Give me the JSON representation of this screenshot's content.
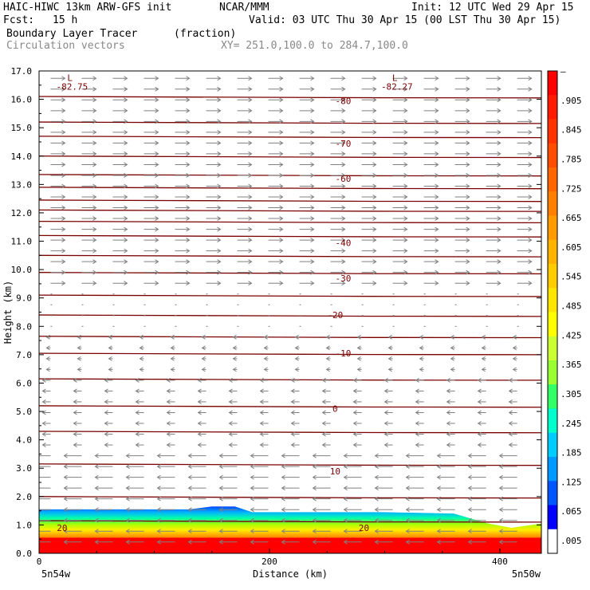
{
  "header": {
    "model": "HAIC-HIWC 13km ARW-GFS init",
    "org": "NCAR/MMM",
    "init": "Init: 12 UTC Wed 29 Apr 15",
    "fcst_label": "Fcst:",
    "fcst_value": "15 h",
    "valid": "Valid: 03 UTC Thu 30 Apr 15 (00 LST Thu 30 Apr 15)",
    "field": "Boundary Layer Tracer",
    "field_units": "(fraction)",
    "overlay": "Circulation vectors",
    "xy": "XY= 251.0,100.0 to 284.7,100.0"
  },
  "chart_data": {
    "type": "heatmap",
    "xlabel": "Distance (km)",
    "ylabel": "Height (km)",
    "xlim": [
      0,
      436
    ],
    "ylim": [
      0,
      17
    ],
    "x_ticks": [
      0,
      200,
      400
    ],
    "y_ticks": [
      "0.0",
      "1.0",
      "2.0",
      "3.0",
      "4.0",
      "5.0",
      "6.0",
      "7.0",
      "8.0",
      "9.0",
      "10.0",
      "11.0",
      "12.0",
      "13.0",
      "14.0",
      "15.0",
      "16.0",
      "17.0"
    ],
    "x_end_labels": [
      "5n54w",
      "5n50w"
    ],
    "colorbar": {
      "labels": [
        "–",
        ".905",
        ".845",
        ".785",
        ".725",
        ".665",
        ".605",
        ".545",
        ".485",
        ".425",
        ".365",
        ".305",
        ".245",
        ".185",
        ".125",
        ".065",
        ".005"
      ],
      "colors": [
        "#ff0000",
        "#ff1a00",
        "#ff3300",
        "#ff4d00",
        "#ff6600",
        "#ff8000",
        "#ff9a00",
        "#ffb300",
        "#ffcc00",
        "#ffe600",
        "#ffff00",
        "#ccff33",
        "#99ff33",
        "#33ff66",
        "#00ffcc",
        "#00ccff",
        "#0099ff",
        "#0055ff",
        "#0000ff",
        "#ffffff"
      ]
    },
    "tracer_top_km": [
      [
        0,
        1.55
      ],
      [
        80,
        1.55
      ],
      [
        130,
        1.55
      ],
      [
        150,
        1.65
      ],
      [
        170,
        1.65
      ],
      [
        185,
        1.45
      ],
      [
        250,
        1.45
      ],
      [
        300,
        1.45
      ],
      [
        360,
        1.4
      ],
      [
        390,
        1.05
      ],
      [
        410,
        0.9
      ],
      [
        436,
        1.05
      ]
    ],
    "isotherms": [
      {
        "label": "-80",
        "x": 264,
        "y": 15.95
      },
      {
        "label": "-70",
        "x": 264,
        "y": 14.45
      },
      {
        "label": "-60",
        "x": 264,
        "y": 13.2
      },
      {
        "label": "-40",
        "x": 264,
        "y": 10.95
      },
      {
        "label": "-30",
        "x": 264,
        "y": 9.7
      },
      {
        "label": "-20",
        "x": 257,
        "y": 8.4
      },
      {
        "label": "-10",
        "x": 264,
        "y": 7.05
      },
      {
        "label": "0",
        "x": 257,
        "y": 5.1
      },
      {
        "label": "10",
        "x": 257,
        "y": 2.9
      },
      {
        "label": "20",
        "x": 20,
        "y": 0.9
      },
      {
        "label": "20",
        "x": 282,
        "y": 0.9
      }
    ],
    "isotherm_lines_km": [
      16.1,
      15.2,
      14.7,
      14.0,
      13.35,
      12.9,
      12.45,
      12.1,
      11.7,
      11.2,
      10.5,
      9.9,
      9.1,
      8.4,
      7.65,
      7.05,
      6.15,
      5.2,
      4.3,
      3.15,
      2.0,
      1.15
    ],
    "pressure_lows": [
      {
        "mark": "L",
        "value": "-82.75",
        "x": 30,
        "y": 16.65
      },
      {
        "mark": "L",
        "value": "-82.27",
        "x": 312,
        "y": 16.65
      }
    ]
  }
}
